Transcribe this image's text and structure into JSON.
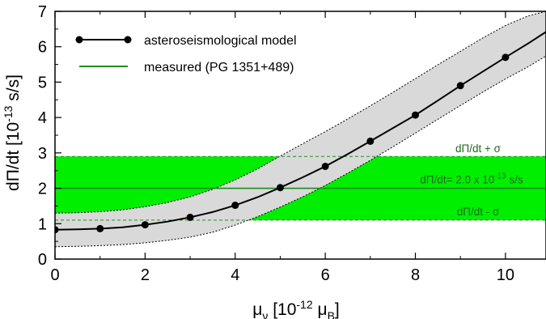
{
  "chart_data": {
    "type": "line",
    "xlabel": {
      "main": "μ",
      "sub": "ν",
      "bracket_open": " [10",
      "sup": "-12",
      "unit": " μ",
      "unit_sub": "B",
      "bracket_close": "]"
    },
    "ylabel": {
      "main": "dΠ/dt [10",
      "sup": "-13",
      "rest": " s/s]"
    },
    "xlim": [
      0,
      10.9
    ],
    "ylim": [
      0,
      7
    ],
    "xticks": [
      "0",
      "2",
      "4",
      "6",
      "8",
      "10"
    ],
    "yticks": [
      "0",
      "1",
      "2",
      "3",
      "4",
      "5",
      "6",
      "7"
    ],
    "series": [
      {
        "name": "asteroseismological model",
        "color": "#000000",
        "x": [
          0,
          1,
          2,
          3,
          4,
          5,
          6,
          7,
          8,
          9,
          10
        ],
        "y": [
          0.83,
          0.86,
          0.97,
          1.18,
          1.52,
          2.02,
          2.62,
          3.33,
          4.07,
          4.9,
          5.7
        ],
        "curve": {
          "x": [
            0,
            0.5,
            1,
            1.5,
            2,
            2.5,
            3,
            3.5,
            4,
            4.5,
            5,
            5.5,
            6,
            6.5,
            7,
            7.5,
            8,
            8.5,
            9,
            9.5,
            10,
            10.5,
            10.9
          ],
          "y": [
            0.83,
            0.84,
            0.86,
            0.9,
            0.97,
            1.06,
            1.18,
            1.33,
            1.52,
            1.75,
            2.02,
            2.31,
            2.62,
            2.97,
            3.33,
            3.7,
            4.07,
            4.48,
            4.9,
            5.3,
            5.7,
            6.09,
            6.42
          ]
        },
        "band_upper": [
          1.3,
          1.31,
          1.34,
          1.39,
          1.48,
          1.6,
          1.76,
          1.97,
          2.24,
          2.55,
          2.91,
          3.26,
          3.6,
          3.96,
          4.33,
          4.71,
          5.1,
          5.49,
          5.87,
          6.25,
          6.6,
          6.87,
          7.0
        ],
        "band_lower": [
          0.35,
          0.36,
          0.38,
          0.41,
          0.46,
          0.53,
          0.62,
          0.76,
          0.96,
          1.2,
          1.47,
          1.76,
          2.08,
          2.43,
          2.79,
          3.17,
          3.56,
          3.95,
          4.34,
          4.72,
          5.09,
          5.43,
          5.74
        ],
        "band_color": "#d9d9d9"
      },
      {
        "name": "measured (PG 1351+489)",
        "color": "#1c8c1c",
        "value": 2.0,
        "sigma": 0.9,
        "band_color": "#00ee00"
      }
    ],
    "annotations": {
      "upper": "dΠ/dt + σ",
      "middle_main": "dΠ/dt= 2.0 x 10",
      "middle_sup": "-13",
      "middle_rest": " s/s",
      "lower": "dΠ/dt - σ"
    },
    "legend_position": "top-left"
  }
}
